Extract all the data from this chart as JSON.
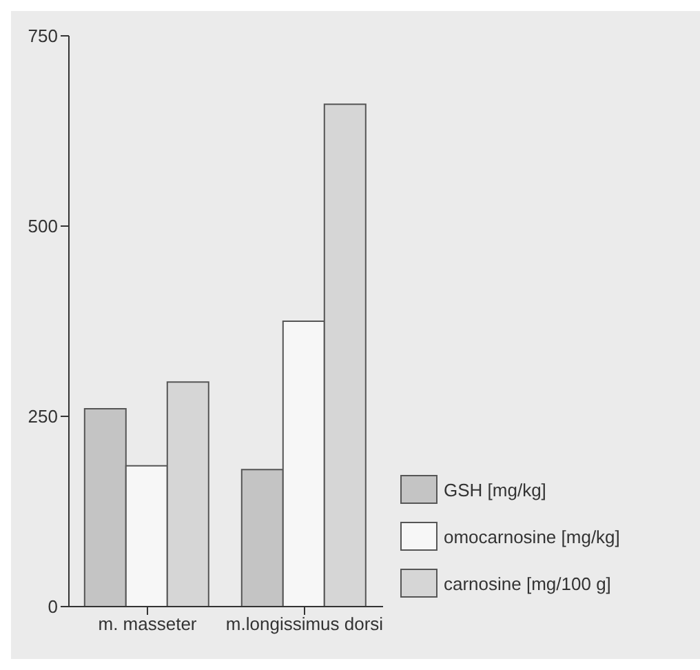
{
  "chart_data": {
    "type": "bar",
    "categories": [
      "m. masseter",
      "m.longissimus dorsi"
    ],
    "series": [
      {
        "name": "GSH [mg/kg]",
        "color": "#c4c4c4",
        "values": [
          260,
          180
        ]
      },
      {
        "name": "omocarnosine [mg/kg]",
        "color": "#f7f7f7",
        "values": [
          185,
          375
        ]
      },
      {
        "name": "carnosine [mg/100 g]",
        "color": "#d6d6d6",
        "values": [
          295,
          660
        ]
      }
    ],
    "ylim": [
      0,
      750
    ],
    "yticks": [
      0,
      250,
      500,
      750
    ],
    "grid": false,
    "legend": "bottom right"
  }
}
